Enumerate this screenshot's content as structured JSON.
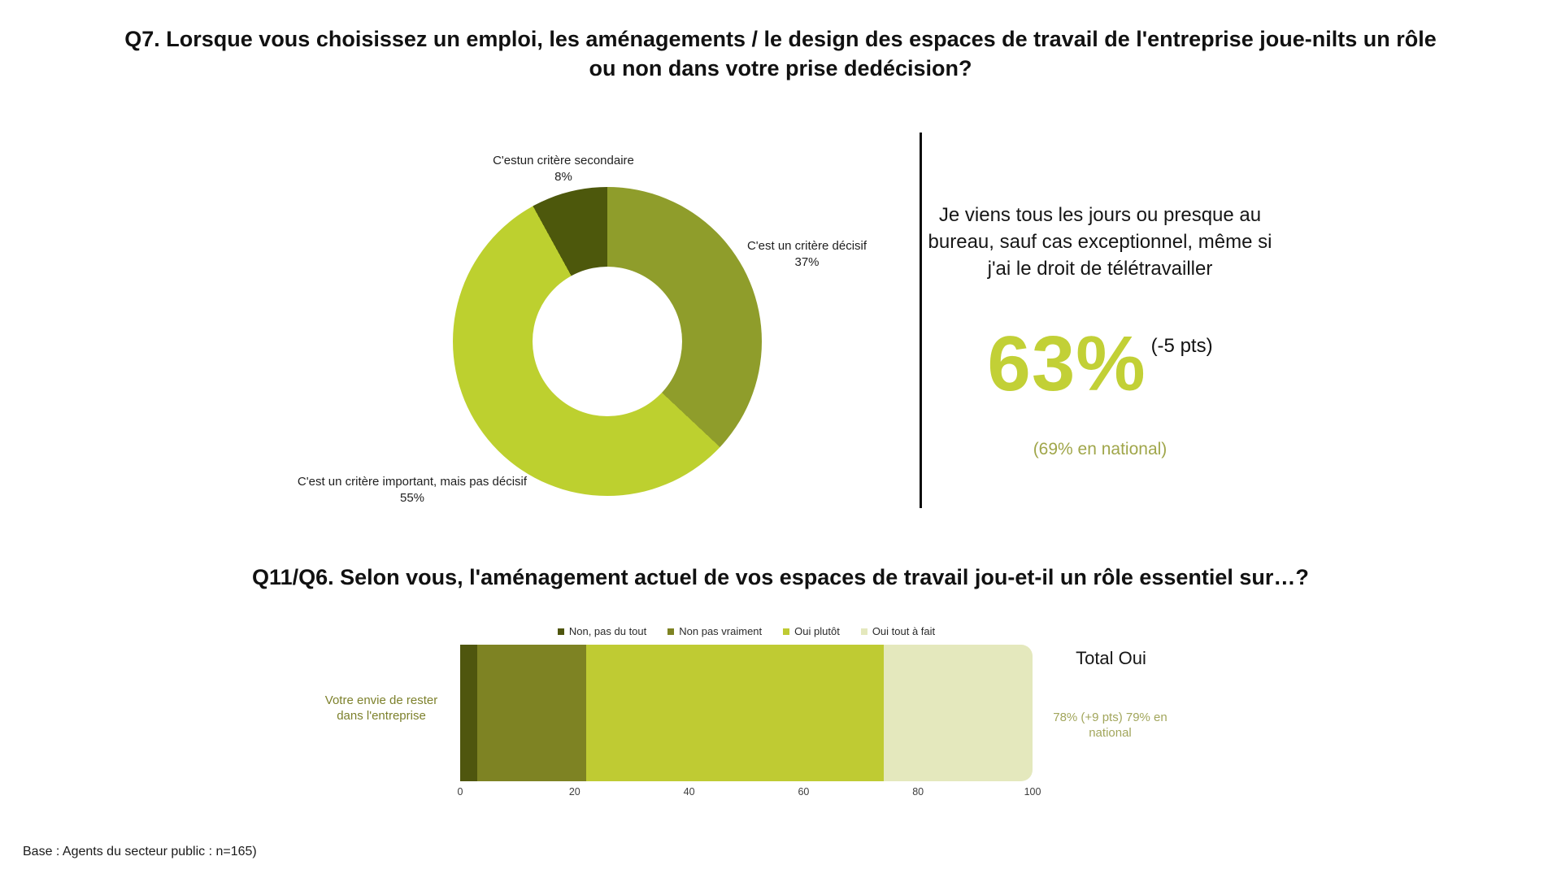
{
  "page": {
    "footer": "Base : Agents du secteur public : n=165)"
  },
  "colors": {
    "accent_big_value": "#c2d036",
    "national_text": "#a0a64a",
    "total_value_text": "#a2a65c",
    "category_text": "#7d812c",
    "divider": "#0d0d0d"
  },
  "q7": {
    "title_line1": "Q7. Lorsque vous choisissez un emploi, les aménagements / le design des espaces de travail de l'entreprise joue-nilts un rôle",
    "title_line2": "ou non dans votre prise dedécision?",
    "donut_labels": {
      "secondaire": {
        "text": "C'estun critère secondaire",
        "value": "8%"
      },
      "decisif": {
        "text": "C'est un critère décisif",
        "value": "37%"
      },
      "important": {
        "text": "C'est un critère important, mais pas décisif",
        "value": "55%"
      }
    },
    "highlight": {
      "quote": "Je viens tous les jours ou presque au bureau, sauf cas exceptionnel, même si j'ai le droit de télétravailler",
      "big_value": "63%",
      "delta": "(-5 pts)",
      "national": "(69% en national)"
    }
  },
  "q11": {
    "title": "Q11/Q6. Selon vous, l'aménagement actuel de vos espaces de travail jou-et-il un rôle essentiel sur…?",
    "category": "Votre envie de rester dans l'entreprise",
    "total_label": "Total Oui",
    "total_value": "78% (+9 pts) 79% en national"
  },
  "chart_data": [
    {
      "type": "pie",
      "subtype": "donut",
      "title": "Q7. Lorsque vous choisissez un emploi, les aménagements / le design des espaces de travail de l'entreprise joue-nilts un rôle ou non dans votre prise dedécision?",
      "labels": [
        "C'est un critère décisif",
        "C'est un critère important, mais pas décisif",
        "C'estun critère secondaire"
      ],
      "values": [
        37,
        55,
        8
      ],
      "colors": [
        "#8f9d2b",
        "#bdd02f",
        "#4d580c"
      ],
      "start_angle_deg": 0,
      "direction": "clockwise",
      "annotations": [
        "Je viens tous les jours ou presque au bureau, sauf cas exceptionnel, même si j'ai le droit de télétravailler : 63% (-5 pts), (69% en national)"
      ]
    },
    {
      "type": "bar",
      "orientation": "horizontal",
      "stacked": true,
      "title": "Q11/Q6. Selon vous, l'aménagement actuel de vos espaces de travail jou-et-il un rôle essentiel sur…?",
      "categories": [
        "Votre envie de rester dans l'entreprise"
      ],
      "series": [
        {
          "name": "Non, pas du tout",
          "values": [
            3
          ],
          "color": "#4f560e"
        },
        {
          "name": "Non pas vraiment",
          "values": [
            19
          ],
          "color": "#7e8323"
        },
        {
          "name": "Oui plutôt",
          "values": [
            52
          ],
          "color": "#bfcb33"
        },
        {
          "name": "Oui tout à fait",
          "values": [
            26
          ],
          "color": "#e4e8bd"
        }
      ],
      "xlim": [
        0,
        100
      ],
      "xticks": [
        0,
        20,
        40,
        60,
        80,
        100
      ],
      "legend_position": "top",
      "grid": false,
      "annotations": [
        "Total Oui : 78% (+9 pts) 79% en national"
      ]
    }
  ]
}
